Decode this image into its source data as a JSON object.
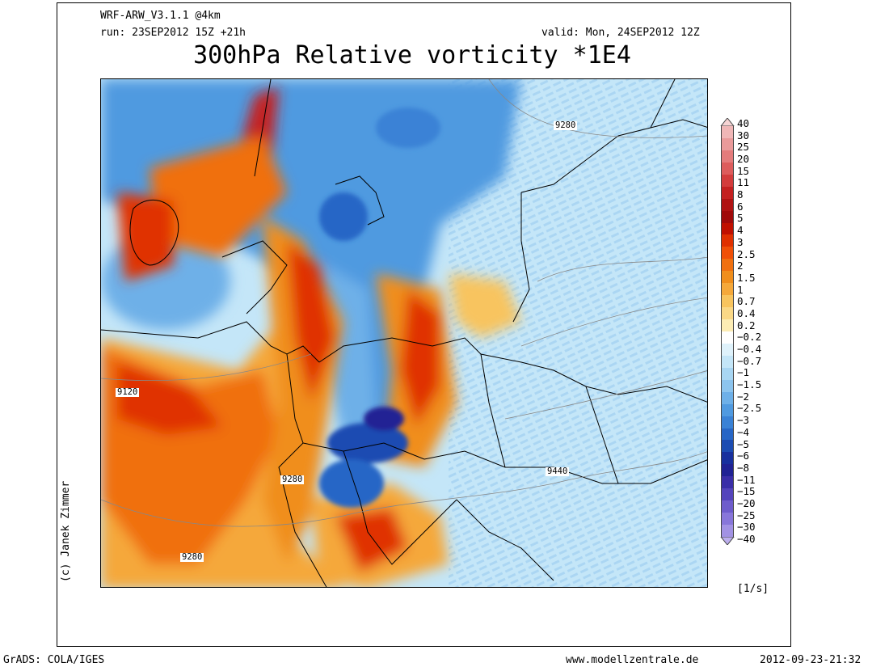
{
  "header": {
    "model": "WRF-ARW_V3.1.1 @4km",
    "run": "run: 23SEP2012 15Z +21h",
    "valid": "valid: Mon, 24SEP2012 12Z",
    "title": "300hPa Relative vorticity *1E4"
  },
  "credit": "(c) Janek Zimmer",
  "footer": {
    "left": "GrADS: COLA/IGES",
    "center": "www.modellzentrale.de",
    "right": "2012-09-23-21:32"
  },
  "units": "[1/s]",
  "contour_labels": [
    "9280",
    "9120",
    "9280",
    "9280",
    "9440"
  ],
  "colorbar": {
    "labels": [
      "40",
      "30",
      "25",
      "20",
      "15",
      "11",
      "8",
      "6",
      "5",
      "4",
      "3",
      "2.5",
      "2",
      "1.5",
      "1",
      "0.7",
      "0.4",
      "0.2",
      "−0.2",
      "−0.4",
      "−0.7",
      "−1",
      "−1.5",
      "−2",
      "−2.5",
      "−3",
      "−4",
      "−5",
      "−6",
      "−8",
      "−11",
      "−15",
      "−20",
      "−25",
      "−30",
      "−40"
    ],
    "colors": [
      "#f6d4d4",
      "#f0b7b7",
      "#ea9a9a",
      "#e47b7b",
      "#dd5c5c",
      "#d33c3c",
      "#c42020",
      "#b01212",
      "#a00a0a",
      "#c01000",
      "#e03000",
      "#f05008",
      "#f07010",
      "#f08e1c",
      "#f5a83a",
      "#f8c45e",
      "#fad886",
      "#fcecb4",
      "#ffffff",
      "#dff2fb",
      "#c4e6f8",
      "#a8d6f3",
      "#8cc4ee",
      "#6eb0e8",
      "#509ae0",
      "#3a82d6",
      "#2766c6",
      "#1c4cb2",
      "#18309e",
      "#202294",
      "#3a2ea8",
      "#5444bc",
      "#6e5ccc",
      "#8876da",
      "#a292e4",
      "#bcaeee"
    ]
  },
  "map": {
    "vorticity_summary": "regional field of 300hPa relative vorticity over central Europe"
  }
}
